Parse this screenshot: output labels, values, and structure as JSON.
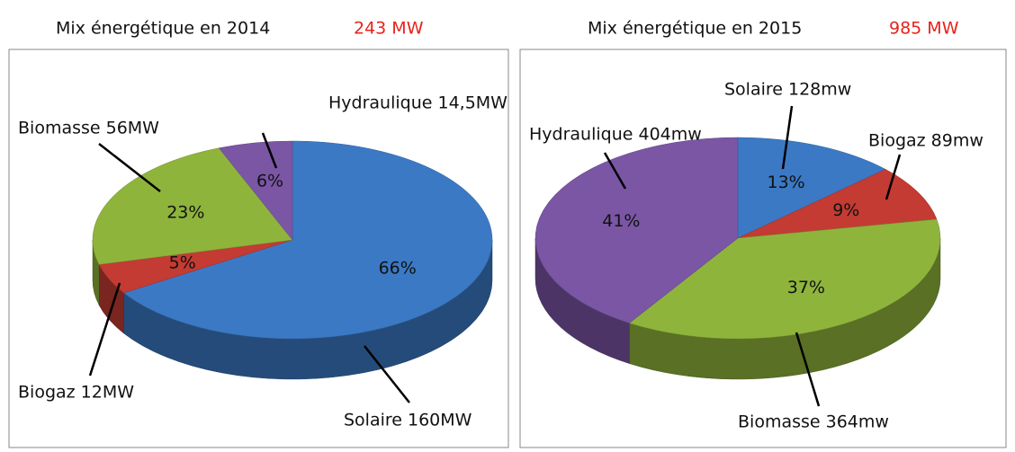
{
  "chart_data": [
    {
      "type": "pie",
      "title": "Mix énergétique en 2014",
      "subtitle": "243 MW",
      "categories": [
        "Solaire 160MW",
        "Biogaz 12MW",
        "Biomasse 56MW",
        "Hydraulique 14,5MW"
      ],
      "values": [
        66,
        5,
        23,
        6
      ],
      "value_labels": [
        "66%",
        "5%",
        "23%",
        "6%"
      ],
      "colors": [
        "#3b79c5",
        "#c33b33",
        "#8fb43c",
        "#7a56a4"
      ]
    },
    {
      "type": "pie",
      "title": "Mix énergétique en 2015",
      "subtitle": "985 MW",
      "categories": [
        "Solaire 128mw",
        "Biogaz 89mw",
        "Biomasse 364mw",
        "Hydraulique 404mw"
      ],
      "values": [
        13,
        9,
        37,
        41
      ],
      "value_labels": [
        "13%",
        "9%",
        "37%",
        "41%"
      ],
      "colors": [
        "#3b79c5",
        "#c33b33",
        "#8fb43c",
        "#7a56a4"
      ]
    }
  ]
}
